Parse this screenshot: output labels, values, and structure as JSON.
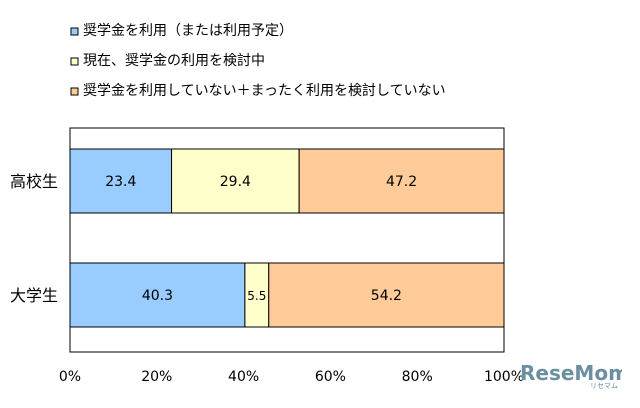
{
  "chart_data": {
    "type": "bar",
    "orientation": "horizontal",
    "stacked": "percent",
    "categories": [
      "高校生",
      "大学生"
    ],
    "series": [
      {
        "name": "奨学金を利用（または利用予定）",
        "values": [
          23.4,
          40.3
        ],
        "color": "#99ccff"
      },
      {
        "name": "現在、奨学金の利用を検討中",
        "values": [
          29.4,
          5.5
        ],
        "color": "#ffffcc"
      },
      {
        "name": "奨学金を利用していない＋まったく利用を検討していない",
        "values": [
          47.2,
          54.2
        ],
        "color": "#ffcc99"
      }
    ],
    "data_labels": [
      [
        "23.4",
        "29.4",
        "47.2"
      ],
      [
        "40.3",
        "5.5",
        "54.2"
      ]
    ],
    "xlim": [
      0,
      100
    ],
    "x_ticks": [
      "0%",
      "20%",
      "40%",
      "60%",
      "80%",
      "100%"
    ],
    "legend_position": "top",
    "grid": false
  },
  "watermark": {
    "text": "ReseMom",
    "subtext": "リセマム"
  }
}
